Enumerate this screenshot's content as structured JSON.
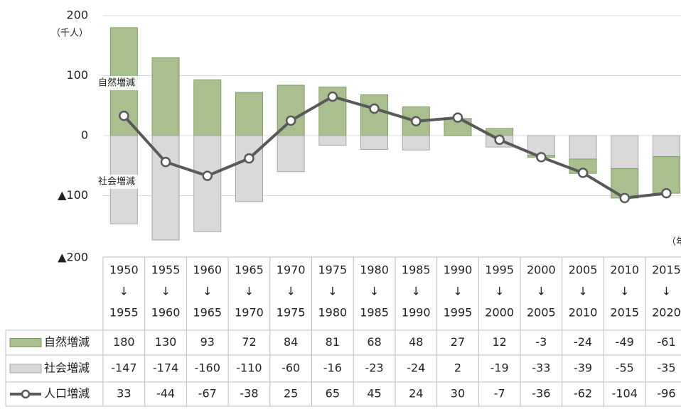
{
  "chart_data": {
    "type": "bar_line",
    "unit_label": "（千人）",
    "x_unit_label": "（年）",
    "categories": [
      [
        "1950",
        "↓",
        "1955"
      ],
      [
        "1955",
        "↓",
        "1960"
      ],
      [
        "1960",
        "↓",
        "1965"
      ],
      [
        "1965",
        "↓",
        "1970"
      ],
      [
        "1970",
        "↓",
        "1975"
      ],
      [
        "1975",
        "↓",
        "1980"
      ],
      [
        "1980",
        "↓",
        "1985"
      ],
      [
        "1985",
        "↓",
        "1990"
      ],
      [
        "1990",
        "↓",
        "1995"
      ],
      [
        "1995",
        "↓",
        "2000"
      ],
      [
        "2000",
        "↓",
        "2005"
      ],
      [
        "2005",
        "↓",
        "2010"
      ],
      [
        "2010",
        "↓",
        "2015"
      ],
      [
        "2015",
        "↓",
        "2020"
      ]
    ],
    "series": [
      {
        "name": "自然増減",
        "kind": "bar",
        "color": "#a9c08e",
        "values": [
          180,
          130,
          93,
          72,
          84,
          81,
          68,
          48,
          27,
          12,
          -3,
          -24,
          -49,
          -61
        ]
      },
      {
        "name": "社会増減",
        "kind": "bar",
        "color": "#d9d9d9",
        "values": [
          -147,
          -174,
          -160,
          -110,
          -60,
          -16,
          -23,
          -24,
          2,
          -19,
          -33,
          -39,
          -55,
          -35
        ]
      },
      {
        "name": "人口増減",
        "kind": "line",
        "color": "#595959",
        "values": [
          33,
          -44,
          -67,
          -38,
          25,
          65,
          45,
          24,
          30,
          -7,
          -36,
          -62,
          -104,
          -96
        ]
      }
    ],
    "annotations": [
      {
        "text": "自然増減",
        "series": 0
      },
      {
        "text": "社会増減",
        "series": 1
      }
    ],
    "ylim": [
      -200,
      200
    ],
    "yticks": [
      {
        "value": -200,
        "label": "▲200"
      },
      {
        "value": -100,
        "label": "▲100"
      },
      0,
      100,
      200
    ],
    "grid": true
  }
}
